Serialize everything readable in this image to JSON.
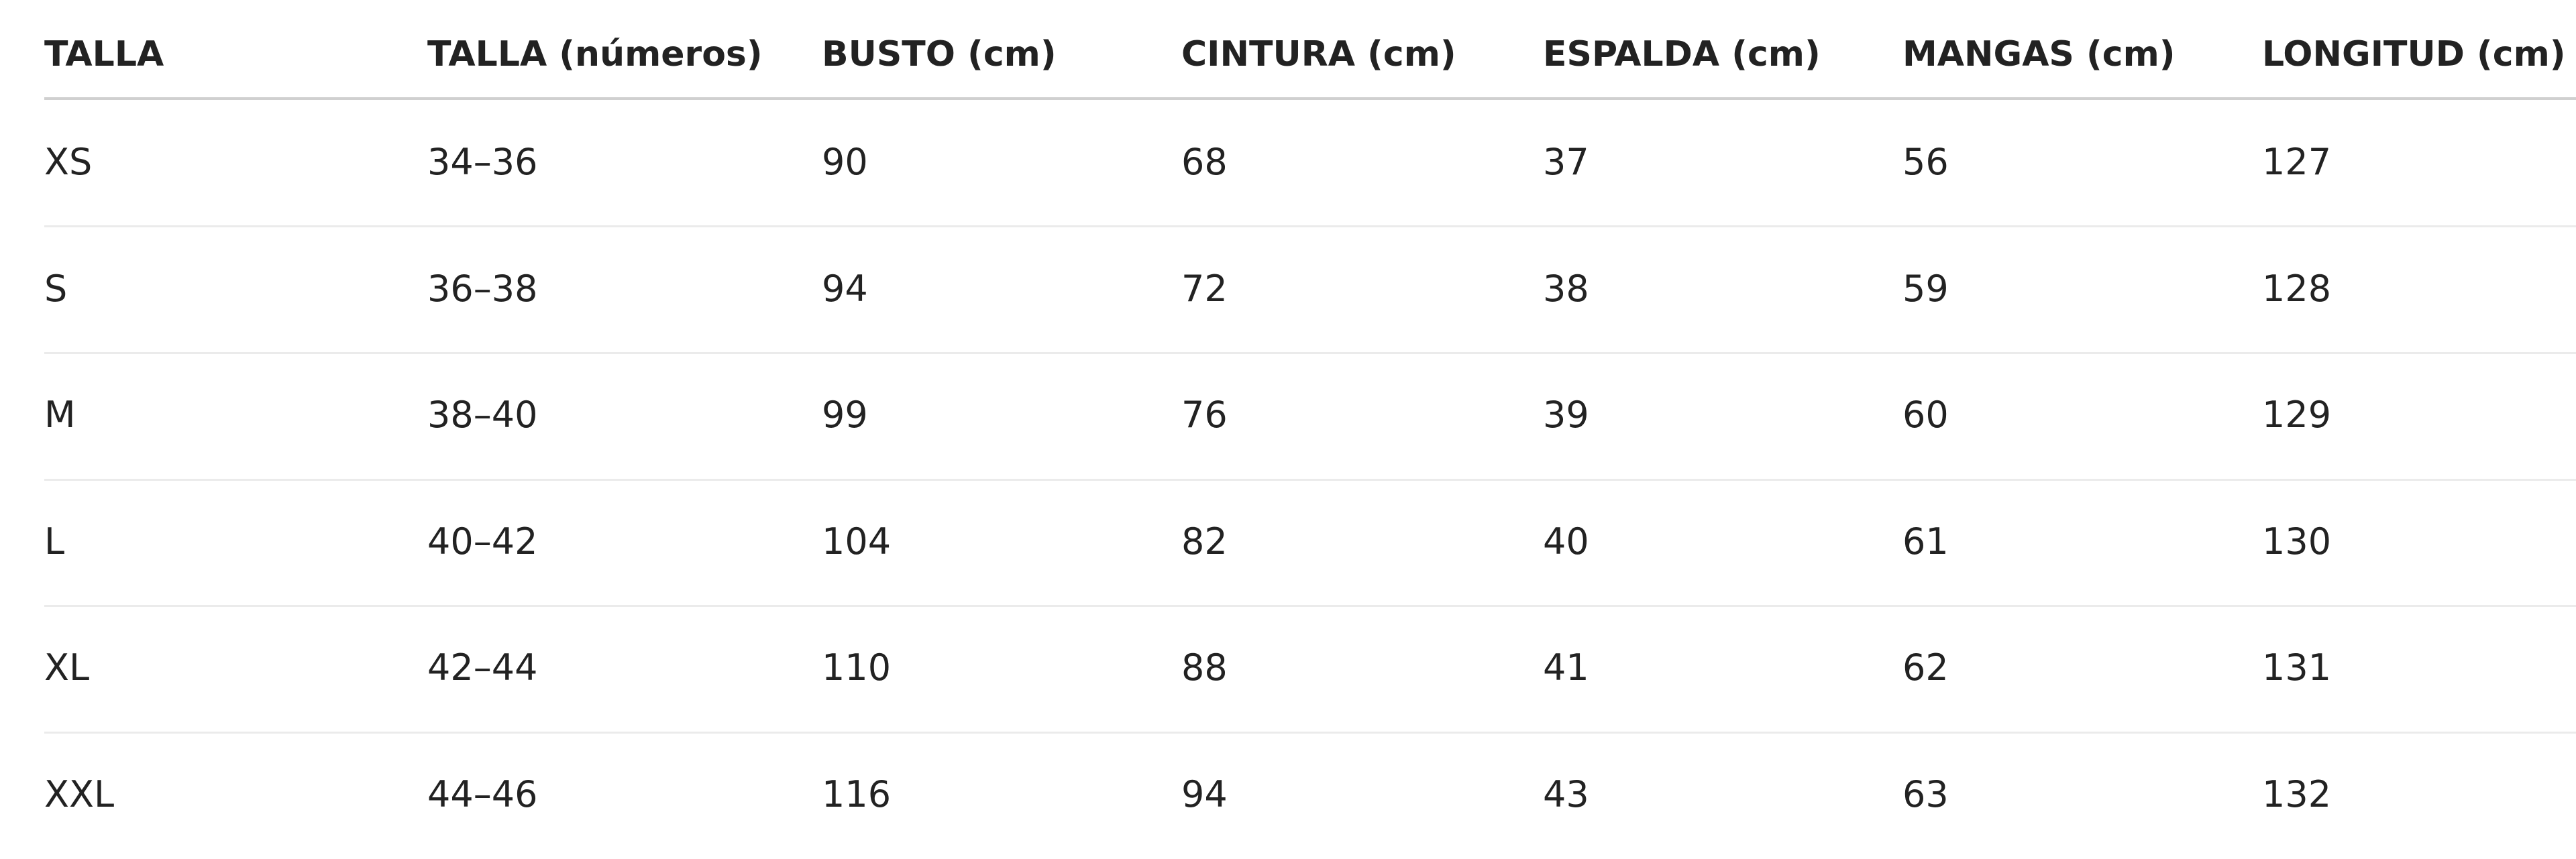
{
  "table": {
    "headers": [
      "TALLA",
      "TALLA (números)",
      "BUSTO (cm)",
      "CINTURA (cm)",
      "ESPALDA (cm)",
      "MANGAS (cm)",
      "LONGITUD (cm)"
    ],
    "rows": [
      [
        "XS",
        "34–36",
        90,
        68,
        37,
        56,
        127
      ],
      [
        "S",
        "36–38",
        94,
        72,
        38,
        59,
        128
      ],
      [
        "M",
        "38–40",
        99,
        76,
        39,
        60,
        129
      ],
      [
        "L",
        "40–42",
        104,
        82,
        40,
        61,
        130
      ],
      [
        "XL",
        "42–44",
        110,
        88,
        41,
        62,
        131
      ],
      [
        "XXL",
        "44–46",
        116,
        94,
        43,
        63,
        132
      ]
    ]
  }
}
